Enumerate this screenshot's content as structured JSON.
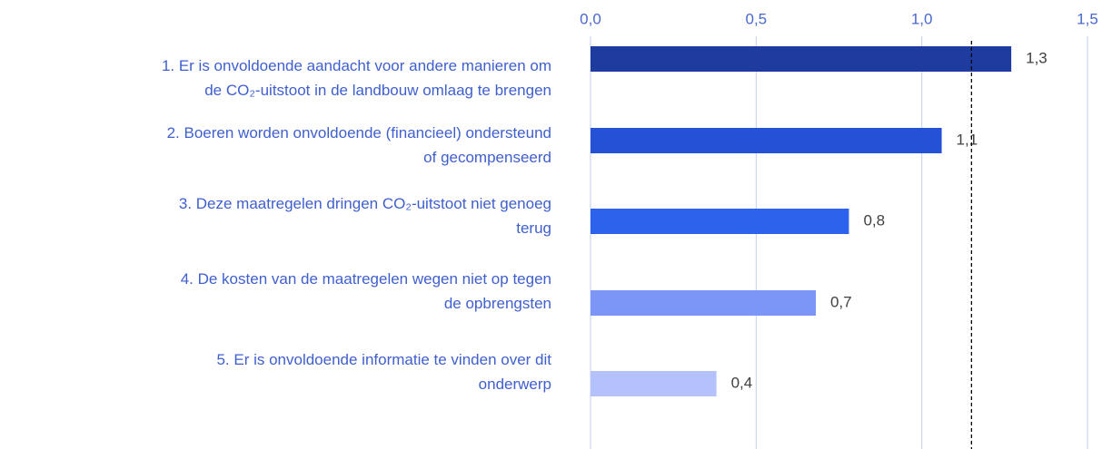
{
  "chart_data": {
    "type": "bar",
    "orientation": "horizontal",
    "categories": [
      "1. Er is onvoldoende aandacht voor andere manieren om\nde CO₂-uitstoot in de landbouw omlaag te brengen",
      "2. Boeren worden onvoldoende (financieel) ondersteund\nof gecompenseerd",
      "3. Deze maatregelen dringen CO₂-uitstoot niet genoeg\nterug",
      "4. De kosten van de maatregelen wegen niet op tegen\nde opbrengsten",
      "5. Er is onvoldoende informatie te vinden over dit\nonderwerp"
    ],
    "values": [
      1.27,
      1.06,
      0.78,
      0.68,
      0.38
    ],
    "value_labels": [
      "1,3",
      "1,1",
      "0,8",
      "0,7",
      "0,4"
    ],
    "colors": [
      "#1e3c9f",
      "#2551d6",
      "#2d62ec",
      "#7b96f7",
      "#b5c1fb"
    ],
    "xlim": [
      0,
      1.5
    ],
    "xticks": [
      {
        "value": 0,
        "label": "0,0"
      },
      {
        "value": 0.5,
        "label": "0,5"
      },
      {
        "value": 1,
        "label": "1,0"
      },
      {
        "value": 1.5,
        "label": "1,5"
      }
    ],
    "reference_line": 1.15,
    "grid": true
  }
}
